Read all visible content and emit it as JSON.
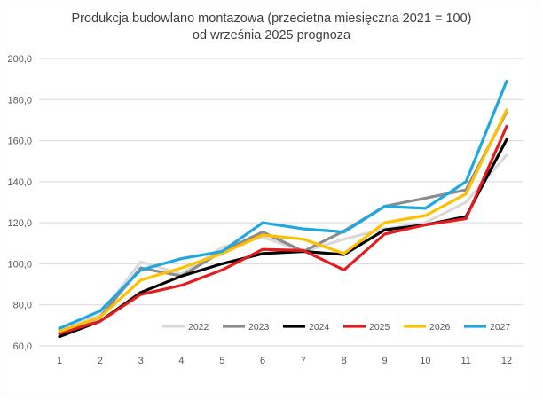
{
  "chart_data": {
    "type": "line",
    "title": "Produkcja budowlano montazowa (przecietna miesięczna 2021 = 100)",
    "subtitle": "od września 2025 prognoza",
    "xlabel": "",
    "ylabel": "",
    "categories": [
      "1",
      "2",
      "3",
      "4",
      "5",
      "6",
      "7",
      "8",
      "9",
      "10",
      "11",
      "12"
    ],
    "ylim": [
      60,
      200
    ],
    "yticks": [
      "60,0",
      "80,0",
      "100,0",
      "120,0",
      "140,0",
      "160,0",
      "180,0",
      "200,0"
    ],
    "ytick_values": [
      60,
      80,
      100,
      120,
      140,
      160,
      180,
      200
    ],
    "grid": true,
    "legend_position": "bottom-right-inside",
    "series": [
      {
        "name": "2022",
        "color": "#d9d9d9",
        "values": [
          68,
          75,
          101,
          95,
          108,
          113,
          106,
          112,
          117,
          120,
          130,
          153
        ]
      },
      {
        "name": "2023",
        "color": "#8c8c8c",
        "values": [
          66,
          74,
          98,
          94,
          106,
          115.5,
          106,
          116,
          128,
          132,
          136,
          174
        ]
      },
      {
        "name": "2024",
        "color": "#000000",
        "values": [
          64.5,
          72,
          86,
          94,
          100,
          105,
          106,
          104.5,
          116.5,
          119,
          123,
          160.5
        ]
      },
      {
        "name": "2025",
        "color": "#e31d1d",
        "values": [
          66,
          72,
          85,
          89.5,
          97,
          107,
          106.5,
          97,
          114.5,
          119,
          122,
          167
        ]
      },
      {
        "name": "2026",
        "color": "#ffc000",
        "values": [
          67,
          74,
          92,
          98,
          105,
          114,
          112,
          105,
          120,
          123.5,
          134,
          175
        ]
      },
      {
        "name": "2027",
        "color": "#1ea8df",
        "values": [
          68.5,
          77,
          97,
          102.5,
          106,
          120,
          117,
          115.5,
          128,
          127,
          140,
          189
        ]
      }
    ]
  }
}
